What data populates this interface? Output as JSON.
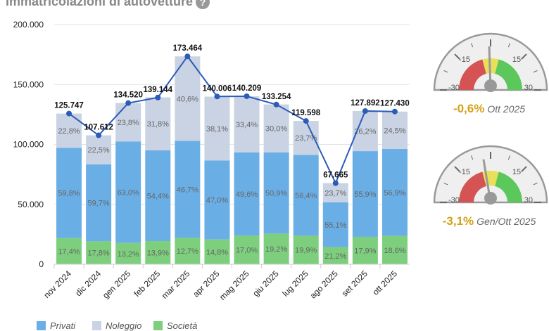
{
  "title": "Immatricolazioni di autovetture",
  "help_icon": "question-icon",
  "chart_data": {
    "type": "bar",
    "stacked": true,
    "categories": [
      "nov 2024",
      "dic 2024",
      "gen 2025",
      "feb 2025",
      "mar 2025",
      "apr 2025",
      "mag 2025",
      "giu 2025",
      "lug 2025",
      "ago 2025",
      "set 2025",
      "ott 2025"
    ],
    "totals": [
      125747,
      107612,
      134520,
      139144,
      173464,
      140006,
      140209,
      133254,
      119598,
      67665,
      127892,
      127430
    ],
    "total_labels": [
      "125.747",
      "107.612",
      "134.520",
      "139.144",
      "173.464",
      "140.006",
      "140.209",
      "133.254",
      "119.598",
      "67.665",
      "127.892",
      "127.430"
    ],
    "series": [
      {
        "name": "Società",
        "color": "#7dcf7d",
        "percent": [
          17.4,
          17.8,
          13.2,
          13.9,
          12.7,
          14.8,
          17.0,
          19.2,
          19.9,
          21.2,
          17.9,
          18.6
        ],
        "labels": [
          "17,4%",
          "17,8%",
          "13,2%",
          "13,9%",
          "12,7%",
          "14,8%",
          "17,0%",
          "19,2%",
          "19,9%",
          "21,2%",
          "17,9%",
          "18,6%"
        ]
      },
      {
        "name": "Privati",
        "color": "#6aaee6",
        "percent": [
          59.8,
          59.7,
          63.0,
          54.4,
          46.7,
          47.0,
          49.6,
          50.9,
          56.4,
          55.1,
          55.9,
          56.9
        ],
        "labels": [
          "59,8%",
          "59,7%",
          "63,0%",
          "54,4%",
          "46,7%",
          "47,0%",
          "49,6%",
          "50,9%",
          "56,4%",
          "55,1%",
          "55,9%",
          "56,9%"
        ]
      },
      {
        "name": "Noleggio",
        "color": "#c9d3e3",
        "percent": [
          22.8,
          22.5,
          23.8,
          31.8,
          40.6,
          38.1,
          33.4,
          30.0,
          23.7,
          23.7,
          26.2,
          24.5
        ],
        "labels": [
          "22,8%",
          "22,5%",
          "23,8%",
          "31,8%",
          "40,6%",
          "38,1%",
          "33,4%",
          "30,0%",
          "23,7%",
          "23,7%",
          "26,2%",
          "24,5%"
        ]
      }
    ],
    "line_color": "#2b5cb8",
    "ylim": [
      0,
      200000
    ],
    "yticks": [
      0,
      50000,
      100000,
      150000,
      200000
    ],
    "ytick_labels": [
      "0",
      "50.000",
      "100.000",
      "150.000",
      "200.000"
    ],
    "grid": true,
    "legend_placement": "bottom"
  },
  "legend": [
    {
      "label": "Privati",
      "color": "#6aaee6"
    },
    {
      "label": "Noleggio",
      "color": "#c9d3e3"
    },
    {
      "label": "Società",
      "color": "#7dcf7d"
    }
  ],
  "gauges": [
    {
      "value": -0.6,
      "value_label": "-0,6%",
      "period": "Ott 2025",
      "min_label": "-30",
      "max_label": "30",
      "mid_labels": [
        "-15",
        "15"
      ]
    },
    {
      "value": -3.1,
      "value_label": "-3,1%",
      "period": "Gen/Ott 2025",
      "min_label": "-30",
      "max_label": "30",
      "mid_labels": [
        "-15",
        "15"
      ]
    }
  ]
}
